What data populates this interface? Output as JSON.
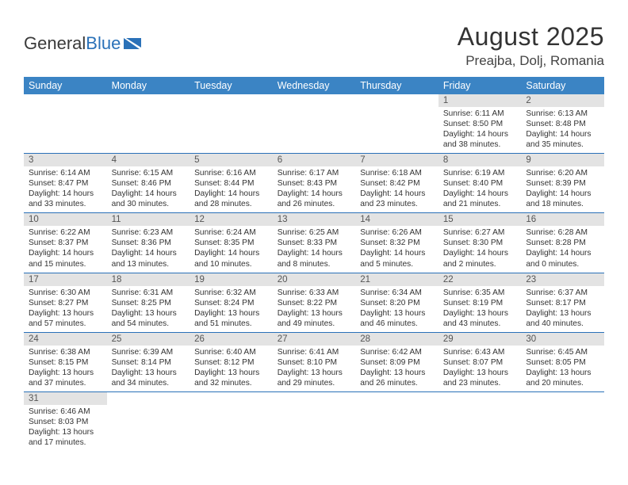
{
  "logo": {
    "text1": "General",
    "text2": "Blue"
  },
  "title": "August 2025",
  "location": "Preajba, Dolj, Romania",
  "colors": {
    "header_bg": "#3b84c4",
    "header_text": "#ffffff",
    "daynum_bg": "#e3e3e3",
    "cell_border": "#2a71b8",
    "logo_gray": "#3a3a3a",
    "logo_blue": "#2a71b8"
  },
  "weekdays": [
    "Sunday",
    "Monday",
    "Tuesday",
    "Wednesday",
    "Thursday",
    "Friday",
    "Saturday"
  ],
  "weeks": [
    [
      null,
      null,
      null,
      null,
      null,
      {
        "n": "1",
        "sr": "6:11 AM",
        "ss": "8:50 PM",
        "dl": "14 hours and 38 minutes."
      },
      {
        "n": "2",
        "sr": "6:13 AM",
        "ss": "8:48 PM",
        "dl": "14 hours and 35 minutes."
      }
    ],
    [
      {
        "n": "3",
        "sr": "6:14 AM",
        "ss": "8:47 PM",
        "dl": "14 hours and 33 minutes."
      },
      {
        "n": "4",
        "sr": "6:15 AM",
        "ss": "8:46 PM",
        "dl": "14 hours and 30 minutes."
      },
      {
        "n": "5",
        "sr": "6:16 AM",
        "ss": "8:44 PM",
        "dl": "14 hours and 28 minutes."
      },
      {
        "n": "6",
        "sr": "6:17 AM",
        "ss": "8:43 PM",
        "dl": "14 hours and 26 minutes."
      },
      {
        "n": "7",
        "sr": "6:18 AM",
        "ss": "8:42 PM",
        "dl": "14 hours and 23 minutes."
      },
      {
        "n": "8",
        "sr": "6:19 AM",
        "ss": "8:40 PM",
        "dl": "14 hours and 21 minutes."
      },
      {
        "n": "9",
        "sr": "6:20 AM",
        "ss": "8:39 PM",
        "dl": "14 hours and 18 minutes."
      }
    ],
    [
      {
        "n": "10",
        "sr": "6:22 AM",
        "ss": "8:37 PM",
        "dl": "14 hours and 15 minutes."
      },
      {
        "n": "11",
        "sr": "6:23 AM",
        "ss": "8:36 PM",
        "dl": "14 hours and 13 minutes."
      },
      {
        "n": "12",
        "sr": "6:24 AM",
        "ss": "8:35 PM",
        "dl": "14 hours and 10 minutes."
      },
      {
        "n": "13",
        "sr": "6:25 AM",
        "ss": "8:33 PM",
        "dl": "14 hours and 8 minutes."
      },
      {
        "n": "14",
        "sr": "6:26 AM",
        "ss": "8:32 PM",
        "dl": "14 hours and 5 minutes."
      },
      {
        "n": "15",
        "sr": "6:27 AM",
        "ss": "8:30 PM",
        "dl": "14 hours and 2 minutes."
      },
      {
        "n": "16",
        "sr": "6:28 AM",
        "ss": "8:28 PM",
        "dl": "14 hours and 0 minutes."
      }
    ],
    [
      {
        "n": "17",
        "sr": "6:30 AM",
        "ss": "8:27 PM",
        "dl": "13 hours and 57 minutes."
      },
      {
        "n": "18",
        "sr": "6:31 AM",
        "ss": "8:25 PM",
        "dl": "13 hours and 54 minutes."
      },
      {
        "n": "19",
        "sr": "6:32 AM",
        "ss": "8:24 PM",
        "dl": "13 hours and 51 minutes."
      },
      {
        "n": "20",
        "sr": "6:33 AM",
        "ss": "8:22 PM",
        "dl": "13 hours and 49 minutes."
      },
      {
        "n": "21",
        "sr": "6:34 AM",
        "ss": "8:20 PM",
        "dl": "13 hours and 46 minutes."
      },
      {
        "n": "22",
        "sr": "6:35 AM",
        "ss": "8:19 PM",
        "dl": "13 hours and 43 minutes."
      },
      {
        "n": "23",
        "sr": "6:37 AM",
        "ss": "8:17 PM",
        "dl": "13 hours and 40 minutes."
      }
    ],
    [
      {
        "n": "24",
        "sr": "6:38 AM",
        "ss": "8:15 PM",
        "dl": "13 hours and 37 minutes."
      },
      {
        "n": "25",
        "sr": "6:39 AM",
        "ss": "8:14 PM",
        "dl": "13 hours and 34 minutes."
      },
      {
        "n": "26",
        "sr": "6:40 AM",
        "ss": "8:12 PM",
        "dl": "13 hours and 32 minutes."
      },
      {
        "n": "27",
        "sr": "6:41 AM",
        "ss": "8:10 PM",
        "dl": "13 hours and 29 minutes."
      },
      {
        "n": "28",
        "sr": "6:42 AM",
        "ss": "8:09 PM",
        "dl": "13 hours and 26 minutes."
      },
      {
        "n": "29",
        "sr": "6:43 AM",
        "ss": "8:07 PM",
        "dl": "13 hours and 23 minutes."
      },
      {
        "n": "30",
        "sr": "6:45 AM",
        "ss": "8:05 PM",
        "dl": "13 hours and 20 minutes."
      }
    ],
    [
      {
        "n": "31",
        "sr": "6:46 AM",
        "ss": "8:03 PM",
        "dl": "13 hours and 17 minutes."
      },
      null,
      null,
      null,
      null,
      null,
      null
    ]
  ],
  "labels": {
    "sunrise": "Sunrise:",
    "sunset": "Sunset:",
    "daylight": "Daylight:"
  }
}
